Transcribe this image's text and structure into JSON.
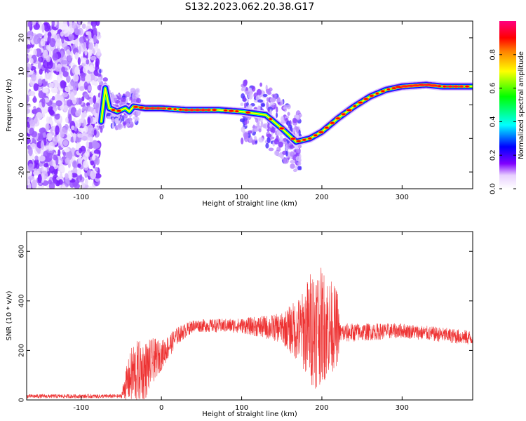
{
  "chart_data": [
    {
      "type": "heatmap",
      "title": "S132.2023.062.20.38.G17",
      "xlabel": "Height of straight line (km)",
      "ylabel": "Frequency (Hz)",
      "xlim": [
        -168,
        388
      ],
      "ylim": [
        -25,
        25
      ],
      "xticks": [
        -100,
        0,
        100,
        200,
        300
      ],
      "yticks": [
        -20,
        -10,
        0,
        10,
        20
      ],
      "colorbar": {
        "label": "Normalized spectral amplitude",
        "range": [
          0,
          1
        ],
        "ticks": [
          0.0,
          0.2,
          0.4,
          0.6,
          0.8
        ],
        "colormap": [
          "#ffffff",
          "#7a00ff",
          "#0000ff",
          "#00ffff",
          "#00ff00",
          "#ffff00",
          "#ff8000",
          "#ff0000",
          "#ff0080"
        ]
      },
      "noise_region_x": [
        -168,
        -78
      ],
      "ridge": [
        {
          "x": -75,
          "y": -5
        },
        {
          "x": -70,
          "y": 5
        },
        {
          "x": -65,
          "y": -1
        },
        {
          "x": -55,
          "y": -2
        },
        {
          "x": -45,
          "y": -1
        },
        {
          "x": -40,
          "y": -2
        },
        {
          "x": -35,
          "y": -0.5
        },
        {
          "x": -20,
          "y": -1
        },
        {
          "x": 0,
          "y": -1
        },
        {
          "x": 30,
          "y": -1.5
        },
        {
          "x": 70,
          "y": -1.5
        },
        {
          "x": 100,
          "y": -2
        },
        {
          "x": 130,
          "y": -3
        },
        {
          "x": 150,
          "y": -7
        },
        {
          "x": 168,
          "y": -11
        },
        {
          "x": 185,
          "y": -10
        },
        {
          "x": 200,
          "y": -8
        },
        {
          "x": 220,
          "y": -4
        },
        {
          "x": 240,
          "y": -0.5
        },
        {
          "x": 260,
          "y": 2.5
        },
        {
          "x": 280,
          "y": 4.5
        },
        {
          "x": 300,
          "y": 5.5
        },
        {
          "x": 330,
          "y": 6
        },
        {
          "x": 350,
          "y": 5.5
        },
        {
          "x": 388,
          "y": 5.5
        }
      ]
    },
    {
      "type": "line",
      "xlabel": "Height of straight line (km)",
      "ylabel": "SNR (10 * v/v)",
      "xlim": [
        -168,
        388
      ],
      "ylim": [
        0,
        680
      ],
      "xticks": [
        -100,
        0,
        100,
        200,
        300
      ],
      "yticks": [
        0,
        200,
        400,
        600
      ],
      "color": "#ee3333",
      "envelope": [
        {
          "x": -168,
          "mean": 15,
          "amp": 8
        },
        {
          "x": -50,
          "mean": 15,
          "amp": 8
        },
        {
          "x": -45,
          "mean": 60,
          "amp": 60
        },
        {
          "x": -35,
          "mean": 110,
          "amp": 130
        },
        {
          "x": -20,
          "mean": 120,
          "amp": 120
        },
        {
          "x": -10,
          "mean": 160,
          "amp": 90
        },
        {
          "x": 0,
          "mean": 180,
          "amp": 60
        },
        {
          "x": 20,
          "mean": 260,
          "amp": 35
        },
        {
          "x": 40,
          "mean": 300,
          "amp": 25
        },
        {
          "x": 100,
          "mean": 300,
          "amp": 30
        },
        {
          "x": 150,
          "mean": 290,
          "amp": 60
        },
        {
          "x": 175,
          "mean": 280,
          "amp": 150
        },
        {
          "x": 190,
          "mean": 300,
          "amp": 260
        },
        {
          "x": 205,
          "mean": 300,
          "amp": 220
        },
        {
          "x": 220,
          "mean": 290,
          "amp": 150
        },
        {
          "x": 222,
          "mean": 270,
          "amp": 40
        },
        {
          "x": 300,
          "mean": 280,
          "amp": 30
        },
        {
          "x": 388,
          "mean": 250,
          "amp": 30
        }
      ]
    }
  ]
}
